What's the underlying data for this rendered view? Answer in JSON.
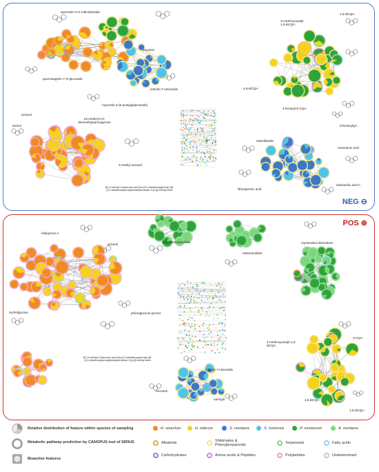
{
  "panels": {
    "neg": {
      "tag": "NEG ⊖",
      "frame_color": "#4a78c8"
    },
    "pos": {
      "tag": "POS ⊕",
      "frame_color": "#d42a2a"
    }
  },
  "neg_labels": [
    "quercetin-3-O-robinobioside",
    "eriocitrin",
    "quercetagetin-7-O-glucoside",
    "luteolin-7-rutinoside",
    "myricetin-3-(6-acetylgalactoside)",
    "arzanol",
    "23-methyl-6-O-desmethylauricepyrone",
    "arenol",
    "3-methyl arzanol",
    "(E)-2-methyl-2-butenoic acid [2a-(3,4-dimethoxyphenyl)-4β-(3,4-dimethoxybenzyl)tetrahydrofuran-3-β-yl] methyl ester",
    "3-methoxyoxalyl-1,5-diCQA",
    "1,5-diCQA",
    "4,5-diCQA",
    "4-feruloyl-5-CQA",
    "5-feruloylQA",
    "salviaflaside",
    "rosmarinic acid",
    "lithospermic acid",
    "salvianolic acid A"
  ],
  "pos_labels": [
    "helipyrone A",
    "arzanol",
    "dihydrotetraenolides",
    "helenanolides",
    "myoinositol derivatives",
    "norhelipyrone",
    "phloroglucinol pyrone",
    "(E)-2-methyl-2-butenoic acid [2a-(3,4-dimethoxyphenyl)-4β-(3,4-dimethoxybenzyl)tetrahydrofuran-3-β-yl] methyl ester",
    "luteolin-7-rutinoside",
    "3-CQA",
    "4-methoxyoxalyl-1,3-diCQA",
    "eriocitrin",
    "naringin",
    "4,5-diCQA",
    "1,5-diCQA"
  ],
  "legend": {
    "symbols": [
      {
        "icon": "pie-icon",
        "text": "Relative distribution of feature within species of sampling"
      },
      {
        "icon": "ring-icon",
        "text": "Metabolic pathway prediction by CANOPUS tool of SIRIUS"
      },
      {
        "icon": "square-icon",
        "text": "Bioactive features"
      }
    ],
    "species": [
      {
        "name": "H. stoechas",
        "color": "#f08a24"
      },
      {
        "name": "H. italicum",
        "color": "#f4d21f"
      },
      {
        "name": "S. montana",
        "color": "#3d78c8"
      },
      {
        "name": "S. hortensis",
        "color": "#4fc4ea"
      },
      {
        "name": "P. montanum",
        "color": "#2fa33a"
      },
      {
        "name": "A. montana",
        "color": "#7cd67a"
      }
    ],
    "pathways": [
      {
        "name": "Alkaloids",
        "color": "#f2a43a"
      },
      {
        "name": "Shikimates & Phenylpropanoids",
        "color": "#f6e27a"
      },
      {
        "name": "Terpenoids",
        "color": "#7fd68a"
      },
      {
        "name": "Fatty acids",
        "color": "#8fd3ee"
      },
      {
        "name": "Carbohydrates",
        "color": "#8a84d8"
      },
      {
        "name": "Amino acids & Peptides",
        "color": "#c58ad8"
      },
      {
        "name": "Polyketides",
        "color": "#f09ac8"
      },
      {
        "name": "Undetermined",
        "color": "#c8c8c8"
      }
    ]
  }
}
